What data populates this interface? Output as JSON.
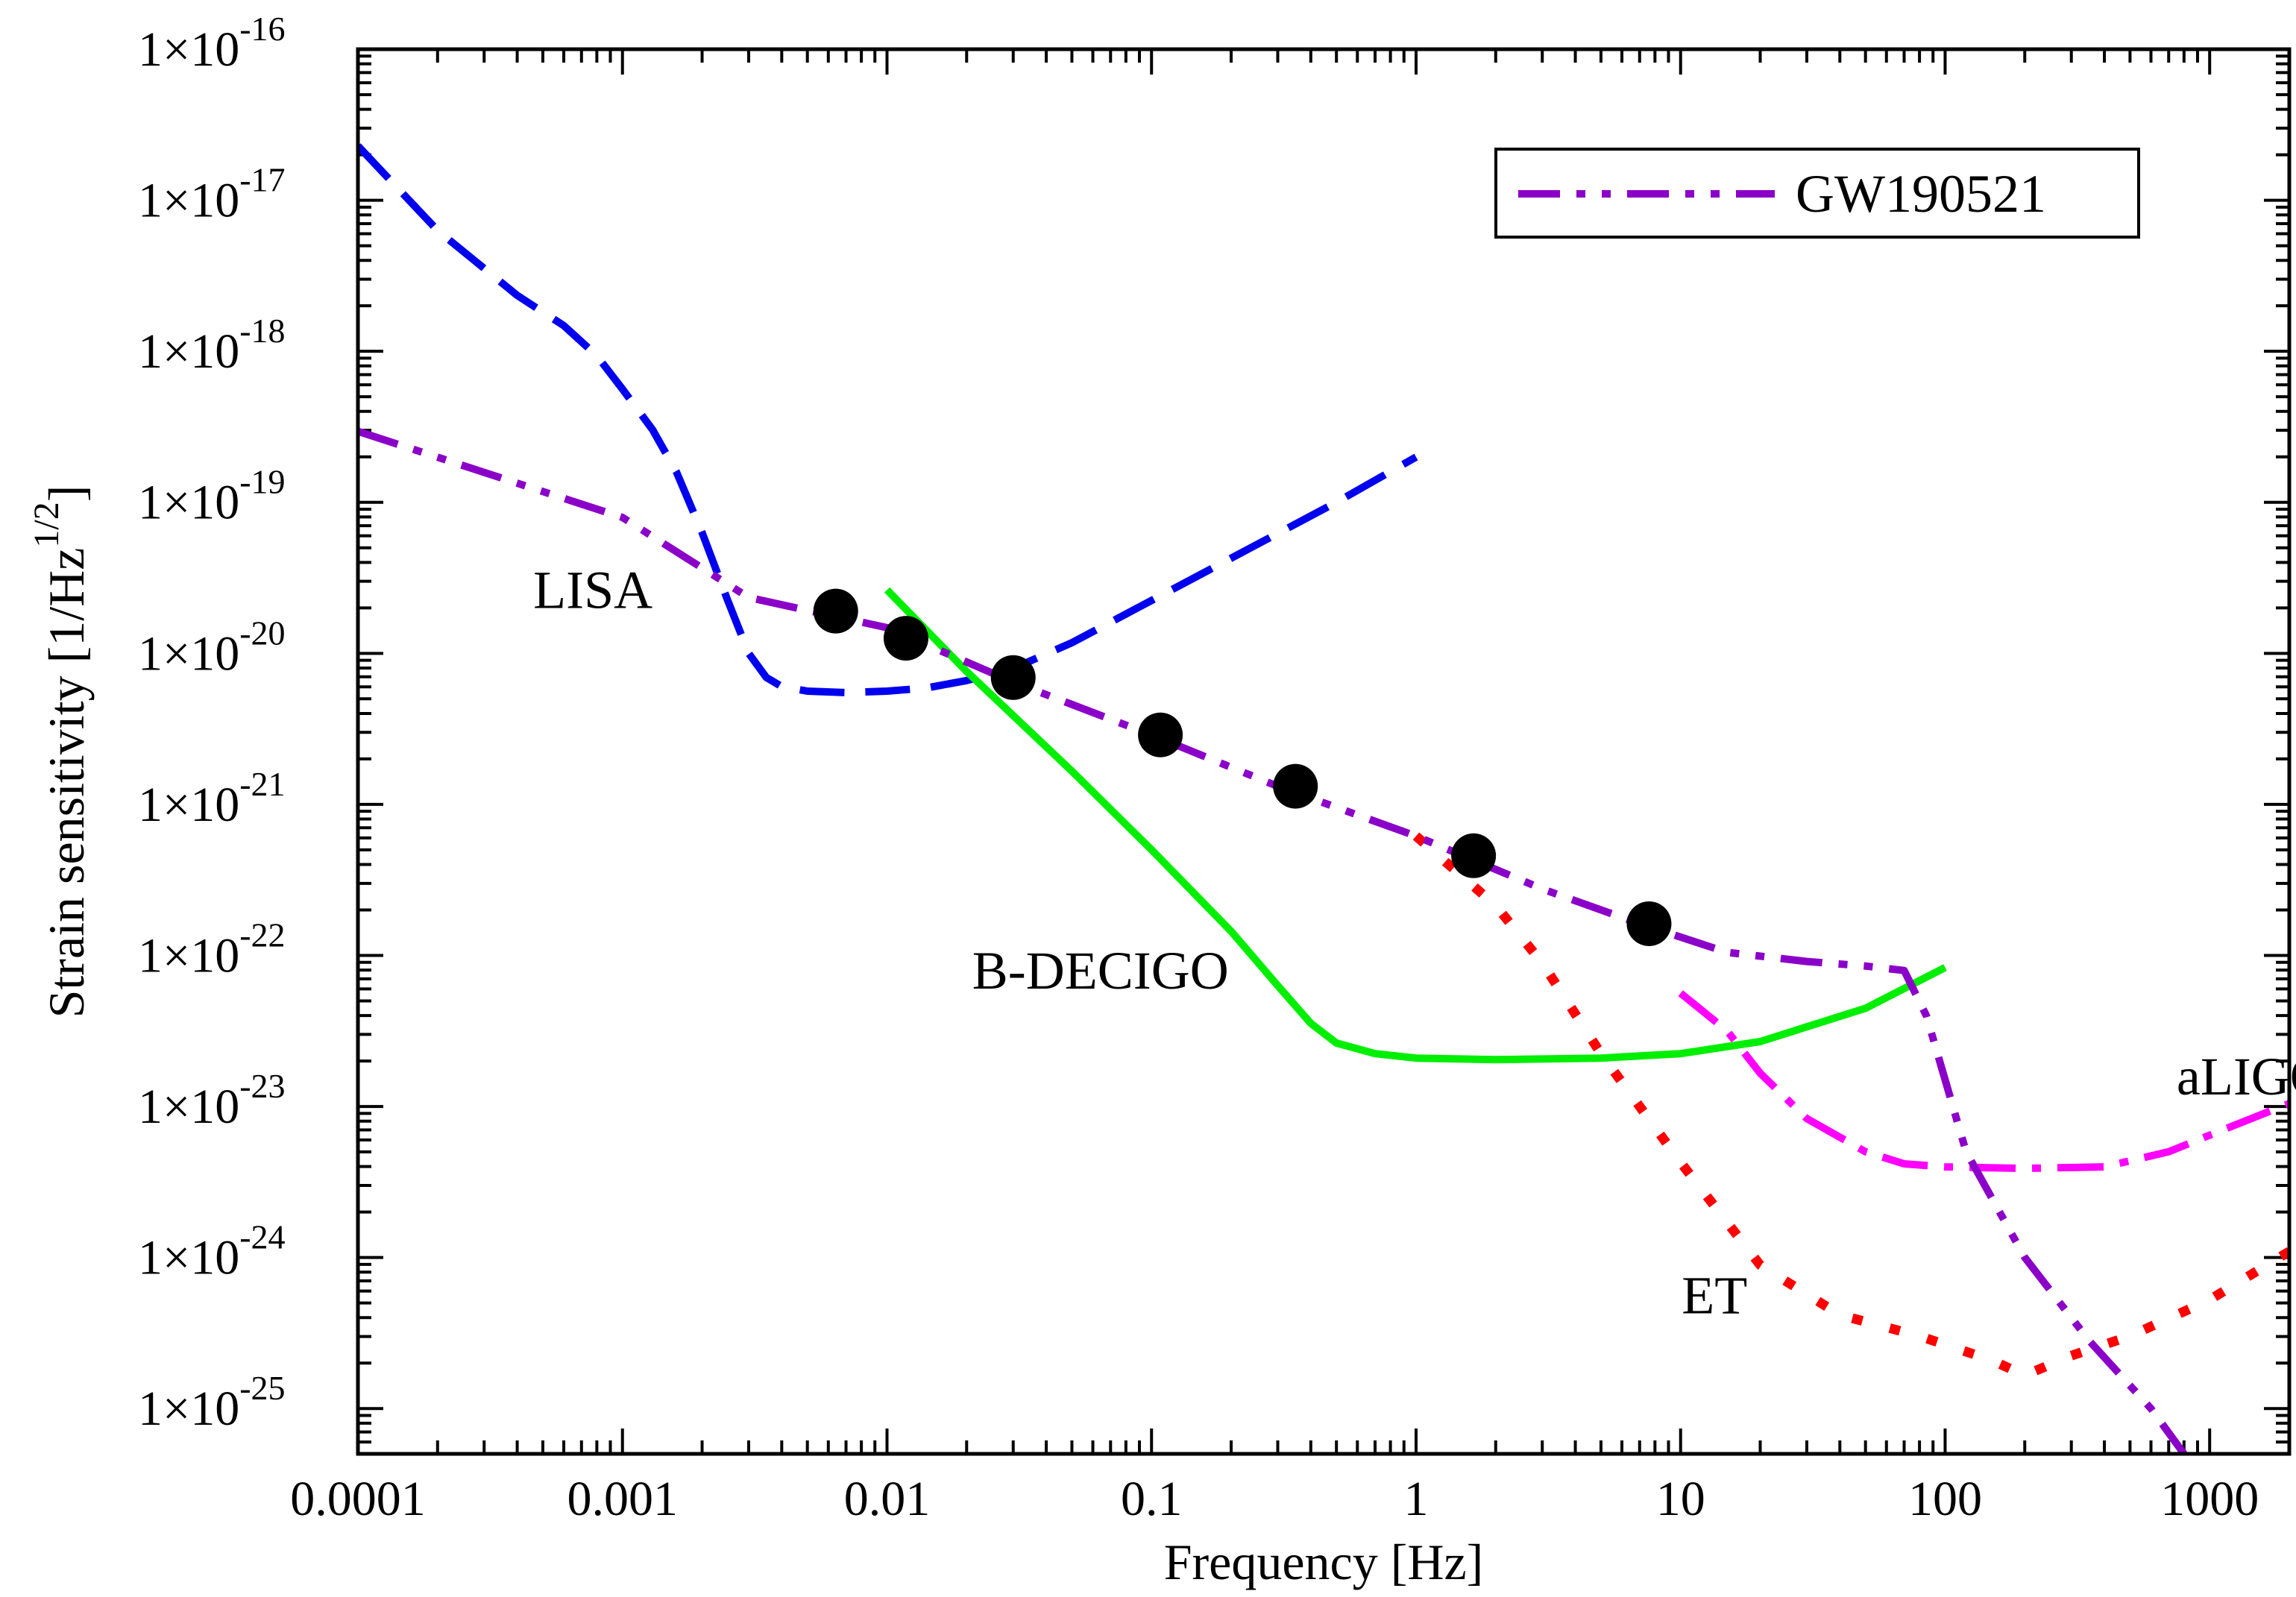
{
  "chart_data": {
    "type": "line",
    "xlabel": "Frequency [Hz]",
    "ylabel_main": "Strain sensitivity [1/Hz",
    "ylabel_sup": "1/2",
    "ylabel_close": "]",
    "x_scale": "log",
    "y_scale": "log",
    "xlim": [
      0.0001,
      2000
    ],
    "ylim_exp": [
      -25.3,
      -16
    ],
    "x_ticks": [
      {
        "value": 0.0001,
        "label": "0.0001"
      },
      {
        "value": 0.001,
        "label": "0.001"
      },
      {
        "value": 0.01,
        "label": "0.01"
      },
      {
        "value": 0.1,
        "label": "0.1"
      },
      {
        "value": 1,
        "label": "1"
      },
      {
        "value": 10,
        "label": "10"
      },
      {
        "value": 100,
        "label": "100"
      },
      {
        "value": 1000,
        "label": "1000"
      }
    ],
    "y_ticks": [
      {
        "exp": -16,
        "base": "1×10",
        "sup": "-16"
      },
      {
        "exp": -17,
        "base": "1×10",
        "sup": "-17"
      },
      {
        "exp": -18,
        "base": "1×10",
        "sup": "-18"
      },
      {
        "exp": -19,
        "base": "1×10",
        "sup": "-19"
      },
      {
        "exp": -20,
        "base": "1×10",
        "sup": "-20"
      },
      {
        "exp": -21,
        "base": "1×10",
        "sup": "-21"
      },
      {
        "exp": -22,
        "base": "1×10",
        "sup": "-22"
      },
      {
        "exp": -23,
        "base": "1×10",
        "sup": "-23"
      },
      {
        "exp": -24,
        "base": "1×10",
        "sup": "-24"
      },
      {
        "exp": -25,
        "base": "1×10",
        "sup": "-25"
      }
    ],
    "legend": {
      "position": "top-right",
      "entries": [
        {
          "name": "GW190521",
          "series": "GW190521"
        }
      ]
    },
    "series": [
      {
        "name": "LISA",
        "color": "#0000ee",
        "style": "dashed",
        "points": [
          [
            0.0001,
            -16.64
          ],
          [
            0.0002,
            -17.2
          ],
          [
            0.0004,
            -17.63
          ],
          [
            0.0006,
            -17.83
          ],
          [
            0.0008,
            -18.03
          ],
          [
            0.001,
            -18.25
          ],
          [
            0.0013,
            -18.52
          ],
          [
            0.0016,
            -18.8
          ],
          [
            0.002,
            -19.2
          ],
          [
            0.0025,
            -19.65
          ],
          [
            0.003,
            -20.0
          ],
          [
            0.0035,
            -20.16
          ],
          [
            0.004,
            -20.22
          ],
          [
            0.005,
            -20.25
          ],
          [
            0.007,
            -20.26
          ],
          [
            0.01,
            -20.25
          ],
          [
            0.014,
            -20.23
          ],
          [
            0.02,
            -20.18
          ],
          [
            0.03,
            -20.1
          ],
          [
            0.05,
            -19.93
          ],
          [
            0.1,
            -19.65
          ],
          [
            0.2,
            -19.37
          ],
          [
            0.5,
            -19.0
          ],
          [
            1,
            -18.7
          ]
        ]
      },
      {
        "name": "B-DECIGO",
        "color": "#00ee00",
        "style": "solid",
        "points": [
          [
            0.01,
            -19.58
          ],
          [
            0.02,
            -20.12
          ],
          [
            0.05,
            -20.78
          ],
          [
            0.1,
            -21.3
          ],
          [
            0.2,
            -21.84
          ],
          [
            0.3,
            -22.2
          ],
          [
            0.4,
            -22.45
          ],
          [
            0.5,
            -22.58
          ],
          [
            0.7,
            -22.65
          ],
          [
            1,
            -22.68
          ],
          [
            2,
            -22.69
          ],
          [
            5,
            -22.68
          ],
          [
            10,
            -22.65
          ],
          [
            20,
            -22.57
          ],
          [
            50,
            -22.35
          ],
          [
            100,
            -22.08
          ]
        ]
      },
      {
        "name": "ET",
        "color": "#ff0000",
        "style": "dotted",
        "points": [
          [
            1,
            -21.21
          ],
          [
            2,
            -21.67
          ],
          [
            3,
            -22.05
          ],
          [
            5,
            -22.65
          ],
          [
            10,
            -23.37
          ],
          [
            20,
            -24.05
          ],
          [
            40,
            -24.38
          ],
          [
            80,
            -24.52
          ],
          [
            150,
            -24.68
          ],
          [
            200,
            -24.78
          ],
          [
            300,
            -24.65
          ],
          [
            500,
            -24.52
          ],
          [
            1000,
            -24.28
          ],
          [
            2000,
            -23.96
          ]
        ]
      },
      {
        "name": "aLIGO",
        "color": "#ff00ff",
        "style": "dash-dot",
        "points": [
          [
            10,
            -22.25
          ],
          [
            15,
            -22.5
          ],
          [
            20,
            -22.78
          ],
          [
            30,
            -23.08
          ],
          [
            50,
            -23.3
          ],
          [
            70,
            -23.38
          ],
          [
            100,
            -23.4
          ],
          [
            200,
            -23.41
          ],
          [
            400,
            -23.4
          ],
          [
            700,
            -23.3
          ],
          [
            1000,
            -23.19
          ],
          [
            2000,
            -22.98
          ]
        ]
      },
      {
        "name": "GW190521",
        "color": "#8b00c8",
        "style": "dash-dot-dot",
        "points": [
          [
            0.0001,
            -18.53
          ],
          [
            0.001,
            -19.1
          ],
          [
            0.003,
            -19.63
          ],
          [
            0.01,
            -19.83
          ],
          [
            0.03,
            -20.19
          ],
          [
            0.1,
            -20.54
          ],
          [
            0.3,
            -20.88
          ],
          [
            1,
            -21.21
          ],
          [
            3,
            -21.56
          ],
          [
            7,
            -21.79
          ],
          [
            15,
            -21.98
          ],
          [
            30,
            -22.04
          ],
          [
            50,
            -22.07
          ],
          [
            70,
            -22.1
          ],
          [
            85,
            -22.4
          ],
          [
            120,
            -23.3
          ],
          [
            200,
            -24.0
          ],
          [
            350,
            -24.55
          ],
          [
            600,
            -25.0
          ],
          [
            800,
            -25.3
          ]
        ]
      },
      {
        "name": "GW190521 points",
        "color": "#000000",
        "style": "markers",
        "points": [
          [
            0.0064,
            -19.72
          ],
          [
            0.0118,
            -19.9
          ],
          [
            0.03,
            -20.16
          ],
          [
            0.108,
            -20.54
          ],
          [
            0.35,
            -20.88
          ],
          [
            1.65,
            -21.34
          ],
          [
            7.6,
            -21.79
          ]
        ]
      }
    ],
    "annotations": [
      {
        "text": "LISA",
        "x": 0.00046,
        "y_exp": -19.7
      },
      {
        "text": "B-DECIGO",
        "x": 0.021,
        "y_exp": -22.22
      },
      {
        "text": "ET",
        "x": 10.1,
        "y_exp": -24.37
      },
      {
        "text": "aLIGO",
        "x": 750,
        "y_exp": -22.92
      }
    ]
  }
}
